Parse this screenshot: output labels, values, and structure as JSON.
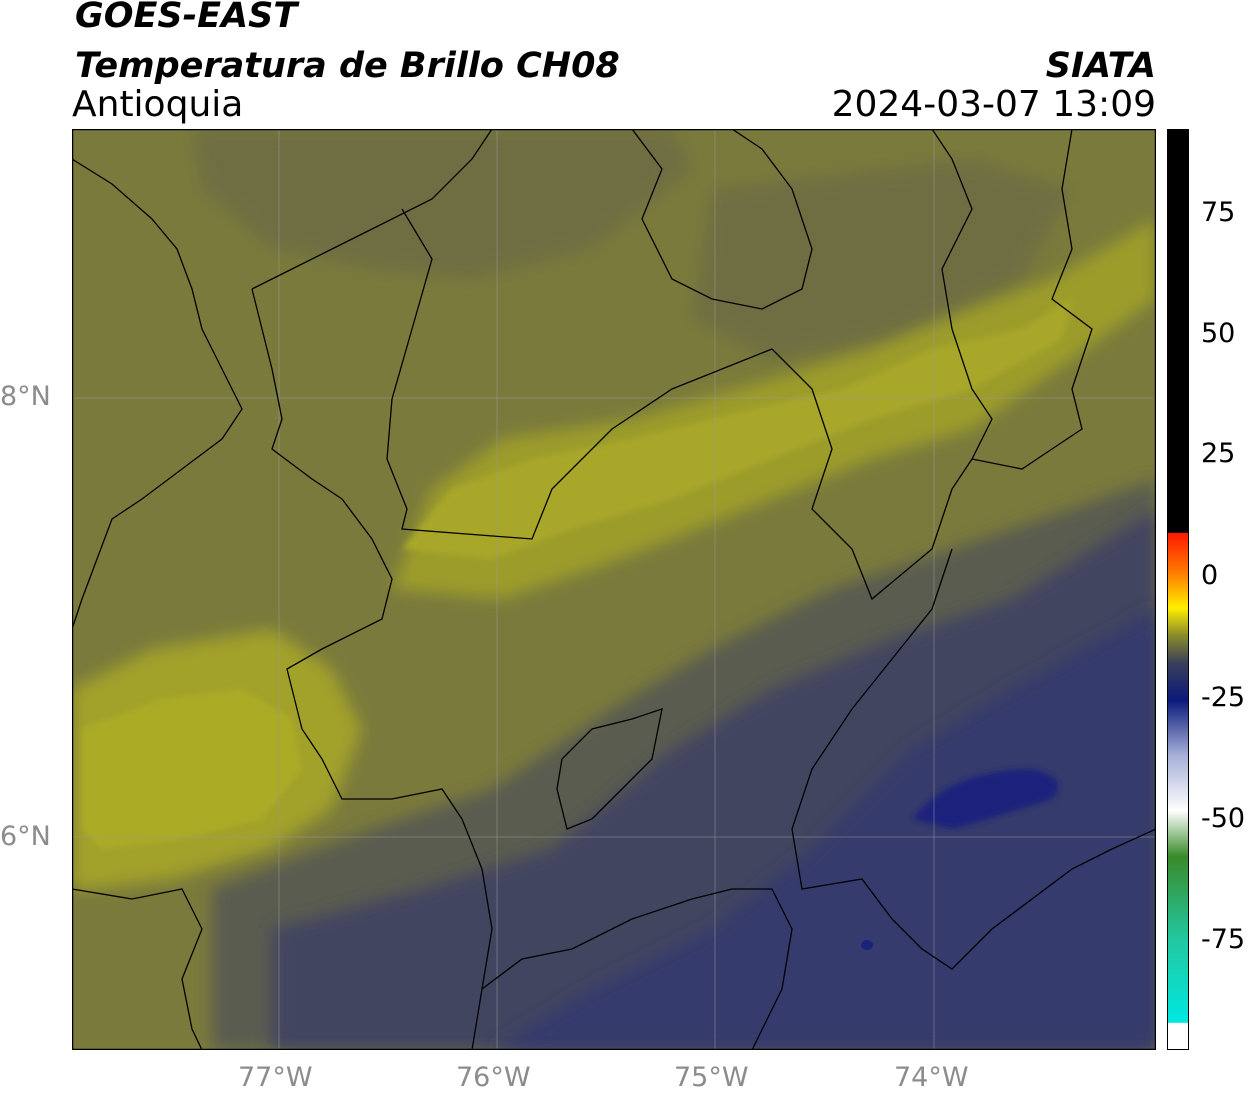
{
  "header": {
    "line1": "GOES-EAST",
    "line2": "Temperatura de Brillo CH08",
    "line3": "Antioquia",
    "org": "SIATA",
    "datetime": "2024-03-07 13:09"
  },
  "axes": {
    "lat_labels": [
      "8°N",
      "6°N"
    ],
    "lon_labels": [
      "77°W",
      "76°W",
      "75°W",
      "74°W"
    ]
  },
  "colorbar": {
    "tick_labels": [
      "75",
      "50",
      "25",
      "0",
      "-25",
      "-50",
      "-75"
    ],
    "colors": {
      "top_black": "#000000",
      "red": "#ff1a00",
      "orange": "#ff9900",
      "yellow": "#ffee00",
      "olive": "#8a8a2a",
      "dark_gray_blue": "#3a3f5a",
      "navy": "#0b1a7a",
      "light_blue": "#a6afd8",
      "white": "#ffffff",
      "green": "#3a8a2a",
      "teal": "#22c8a0",
      "cyan": "#00e8e0"
    }
  },
  "map_colors": {
    "olive_dark": "#6f6f3e",
    "olive_mid": "#7b7b3a",
    "olive_light": "#9b9b2c",
    "yellowish": "#a9a82a",
    "slate": "#4a4b58",
    "slate_blue": "#3c3f62",
    "deep_blue": "#2a3172",
    "navy": "#14207e"
  }
}
